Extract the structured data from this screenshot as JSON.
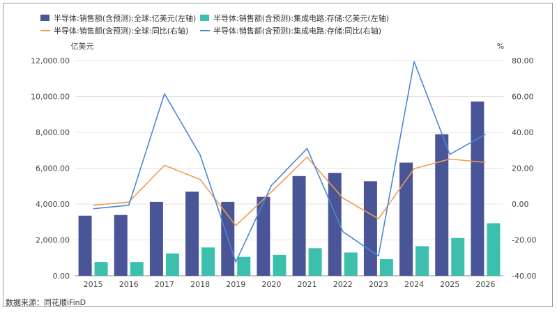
{
  "chart_data": {
    "type": "bar",
    "categories": [
      "2015",
      "2016",
      "2017",
      "2018",
      "2019",
      "2020",
      "2021",
      "2022",
      "2023",
      "2024",
      "2025",
      "2026"
    ],
    "series": [
      {
        "name": "半导体:销售额(含预测):全球:亿美元(左轴)",
        "kind": "bar",
        "axis": "left",
        "color": "#4a5597",
        "values": [
          3350,
          3390,
          4120,
          4690,
          4120,
          4400,
          5560,
          5740,
          5270,
          6310,
          7890,
          9720
        ]
      },
      {
        "name": "半导体:销售额(含预测):集成电路:存储:亿美元(左轴)",
        "kind": "bar",
        "axis": "left",
        "color": "#3dbfad",
        "values": [
          770,
          770,
          1240,
          1580,
          1060,
          1170,
          1540,
          1300,
          930,
          1650,
          2110,
          2930
        ]
      },
      {
        "name": "半导体:销售额(含预测):全球:同比(右轴)",
        "kind": "line",
        "axis": "right",
        "color": "#f29b4f",
        "values": [
          -0.7,
          1.1,
          21.6,
          13.7,
          -12.0,
          6.8,
          26.2,
          3.3,
          -8.2,
          19.7,
          25.1,
          23.2
        ]
      },
      {
        "name": "半导体:销售额(含预测):集成电路:存储:同比(右轴)",
        "kind": "line",
        "axis": "right",
        "color": "#4a88d4",
        "values": [
          -2.6,
          -0.7,
          61.5,
          27.4,
          -32.3,
          10.4,
          31.0,
          -15.4,
          -28.9,
          79.4,
          27.7,
          38.9
        ]
      }
    ],
    "left_axis": {
      "unit": "亿美元",
      "ylim": [
        0,
        12000
      ],
      "ticks": [
        "12,000.00",
        "10,000.00",
        "8,000.00",
        "6,000.00",
        "4,000.00",
        "2,000.00",
        "0.00"
      ]
    },
    "right_axis": {
      "unit": "%",
      "ylim": [
        -40,
        80
      ],
      "ticks": [
        "80.00",
        "60.00",
        "40.00",
        "20.00",
        "0.00",
        "-20.00",
        "-40.00"
      ]
    },
    "legend_position": "top",
    "grid": true
  },
  "source": "数据来源：同花顺iFinD"
}
